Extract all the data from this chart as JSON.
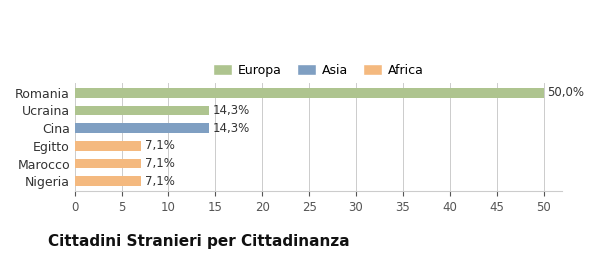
{
  "categories": [
    "Nigeria",
    "Marocco",
    "Egitto",
    "Cina",
    "Ucraina",
    "Romania"
  ],
  "values": [
    7.1,
    7.1,
    7.1,
    14.3,
    14.3,
    50.0
  ],
  "labels": [
    "7,1%",
    "7,1%",
    "7,1%",
    "14,3%",
    "14,3%",
    "50,0%"
  ],
  "colors": [
    "#f4b97f",
    "#f4b97f",
    "#f4b97f",
    "#7f9fc2",
    "#aec48f",
    "#aec48f"
  ],
  "legend_items": [
    {
      "label": "Europa",
      "color": "#aec48f"
    },
    {
      "label": "Asia",
      "color": "#7f9fc2"
    },
    {
      "label": "Africa",
      "color": "#f4b97f"
    }
  ],
  "xlim": [
    0,
    52
  ],
  "xticks": [
    0,
    5,
    10,
    15,
    20,
    25,
    30,
    35,
    40,
    45,
    50
  ],
  "title": "Cittadini Stranieri per Cittadinanza",
  "background_color": "#ffffff",
  "bar_height": 0.55,
  "grid_color": "#cccccc",
  "label_fontsize": 8.5,
  "ytick_fontsize": 9,
  "xtick_fontsize": 8.5,
  "title_fontsize": 11,
  "subtitle_fontsize": 7.5
}
